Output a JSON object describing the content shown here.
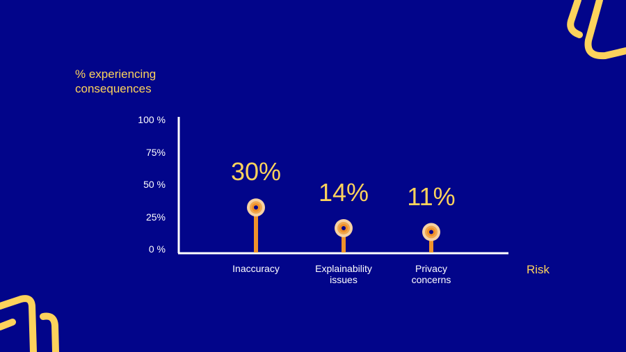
{
  "chart_data": {
    "type": "lollipop",
    "ylabel": "% experiencing consequences",
    "xlabel": "Risk",
    "categories": [
      "Inaccuracy",
      "Explainability issues",
      "Privacy concerns"
    ],
    "category_lines": [
      [
        "Inaccuracy"
      ],
      [
        "Explainability",
        "issues"
      ],
      [
        "Privacy",
        "concerns"
      ]
    ],
    "values": [
      30,
      14,
      11
    ],
    "value_labels": [
      "30%",
      "14%",
      "11%"
    ],
    "yticks": [
      "0 %",
      "25%",
      "50 %",
      "75%",
      "100 %"
    ],
    "ytick_values": [
      0,
      25,
      50,
      75,
      100
    ],
    "ylim": [
      0,
      100
    ],
    "grid": false
  },
  "colors": {
    "background": "#02058a",
    "accent": "#fdd35c",
    "stem": "#f0932b",
    "axis": "#ffffff"
  }
}
